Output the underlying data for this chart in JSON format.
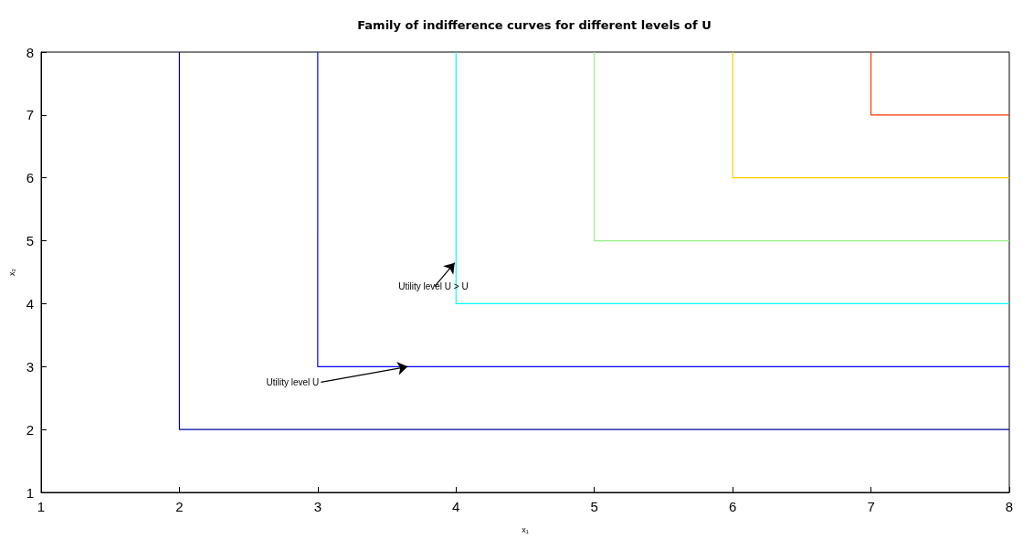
{
  "chart_data": {
    "type": "line",
    "title": "Family of indifference curves for different levels of U",
    "xlabel": "x₁",
    "ylabel": "x₂",
    "xlim": [
      1,
      8
    ],
    "xticks": [
      1,
      2,
      3,
      4,
      5,
      6,
      7,
      8
    ],
    "ylim": [
      1,
      8
    ],
    "yticks": [
      1,
      2,
      3,
      4,
      5,
      6,
      7,
      8
    ],
    "grid": false,
    "marker": "none",
    "line_style": "solid",
    "series": [
      {
        "color": "#0000a0",
        "x": [
          2,
          2,
          8
        ],
        "values": [
          8,
          2,
          2
        ]
      },
      {
        "color": "#0000ff",
        "x": [
          3,
          3,
          8
        ],
        "values": [
          8,
          3,
          3
        ]
      },
      {
        "color": "#00ffff",
        "x": [
          4,
          4,
          8
        ],
        "values": [
          8,
          4,
          4
        ]
      },
      {
        "color": "#90f080",
        "x": [
          5,
          5,
          8
        ],
        "values": [
          8,
          5,
          5
        ]
      },
      {
        "color": "#ffcc00",
        "x": [
          6,
          6,
          8
        ],
        "values": [
          8,
          6,
          6
        ]
      },
      {
        "color": "#ff3300",
        "x": [
          7,
          7,
          8
        ],
        "values": [
          8,
          7,
          7
        ]
      }
    ],
    "annotations": [
      {
        "text": "Utility level U",
        "x": 3.65,
        "y": 3
      },
      {
        "text": "Utility level U > U",
        "x": 3.99,
        "y": 4.65
      }
    ]
  }
}
